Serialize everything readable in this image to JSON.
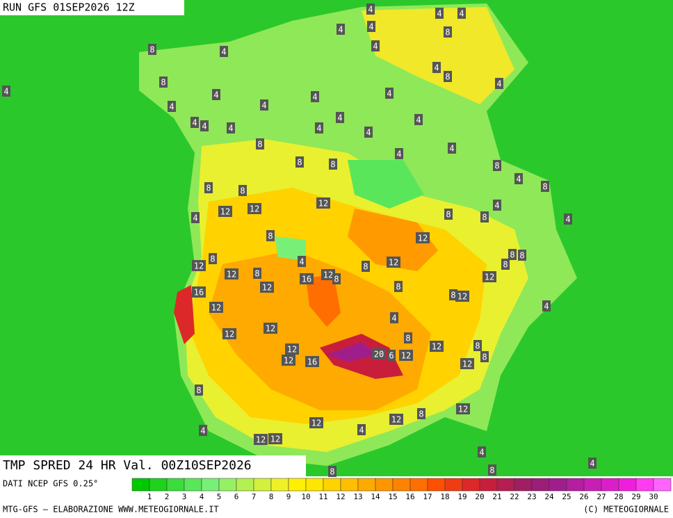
{
  "header": {
    "title": "RUN GFS 01SEP2026 12Z"
  },
  "map": {
    "title": "TMP SPRED 24 HR Val. 00Z10SEP2026",
    "labels": [
      "4",
      "4",
      "4",
      "8",
      "4",
      "4",
      "4",
      "8",
      "4",
      "4",
      "8",
      "4",
      "8",
      "4",
      "4",
      "4",
      "4",
      "4",
      "4",
      "4",
      "4",
      "4",
      "4",
      "4",
      "4",
      "4",
      "8",
      "4",
      "4",
      "8",
      "8",
      "8",
      "4",
      "8",
      "8",
      "8",
      "12",
      "12",
      "12",
      "8",
      "4",
      "8",
      "4",
      "4",
      "8",
      "12",
      "12",
      "8",
      "12",
      "8",
      "4",
      "16",
      "12",
      "8",
      "8",
      "12",
      "8",
      "8",
      "8",
      "12",
      "12",
      "8",
      "16",
      "8",
      "12",
      "12",
      "4",
      "4",
      "12",
      "12",
      "8",
      "12",
      "8",
      "12",
      "8",
      "12",
      "16",
      "20",
      "6",
      "12",
      "12",
      "8",
      "12",
      "8",
      "12",
      "12",
      "4",
      "4",
      "12",
      "12",
      "4",
      "4",
      "8",
      "8"
    ]
  },
  "legend": {
    "source": "DATI NCEP GFS 0.25°",
    "ticks": [
      "1",
      "2",
      "3",
      "4",
      "5",
      "6",
      "7",
      "8",
      "9",
      "10",
      "11",
      "12",
      "13",
      "14",
      "15",
      "16",
      "17",
      "18",
      "19",
      "20",
      "21",
      "22",
      "23",
      "24",
      "25",
      "26",
      "27",
      "28",
      "29",
      "30"
    ],
    "colors": [
      "#00c800",
      "#1ed21e",
      "#3cdc3c",
      "#5ae65a",
      "#78f078",
      "#96f064",
      "#b4f050",
      "#d2f03c",
      "#f0f028",
      "#fff000",
      "#ffe600",
      "#ffd200",
      "#ffbe00",
      "#ffaa00",
      "#ff9600",
      "#ff8200",
      "#ff6e00",
      "#ff5000",
      "#f03c14",
      "#dc2828",
      "#c81e3c",
      "#b41e50",
      "#a01e64",
      "#9b1e78",
      "#a01e8c",
      "#b41ea0",
      "#c81eb4",
      "#dc1ec8",
      "#f01edc",
      "#ff3cf0",
      "#ff64ff"
    ]
  },
  "footer": {
    "left": "MTG-GFS — ELABORAZIONE WWW.METEOGIORNALE.IT",
    "right": "(C) METEOGIORNALE"
  }
}
